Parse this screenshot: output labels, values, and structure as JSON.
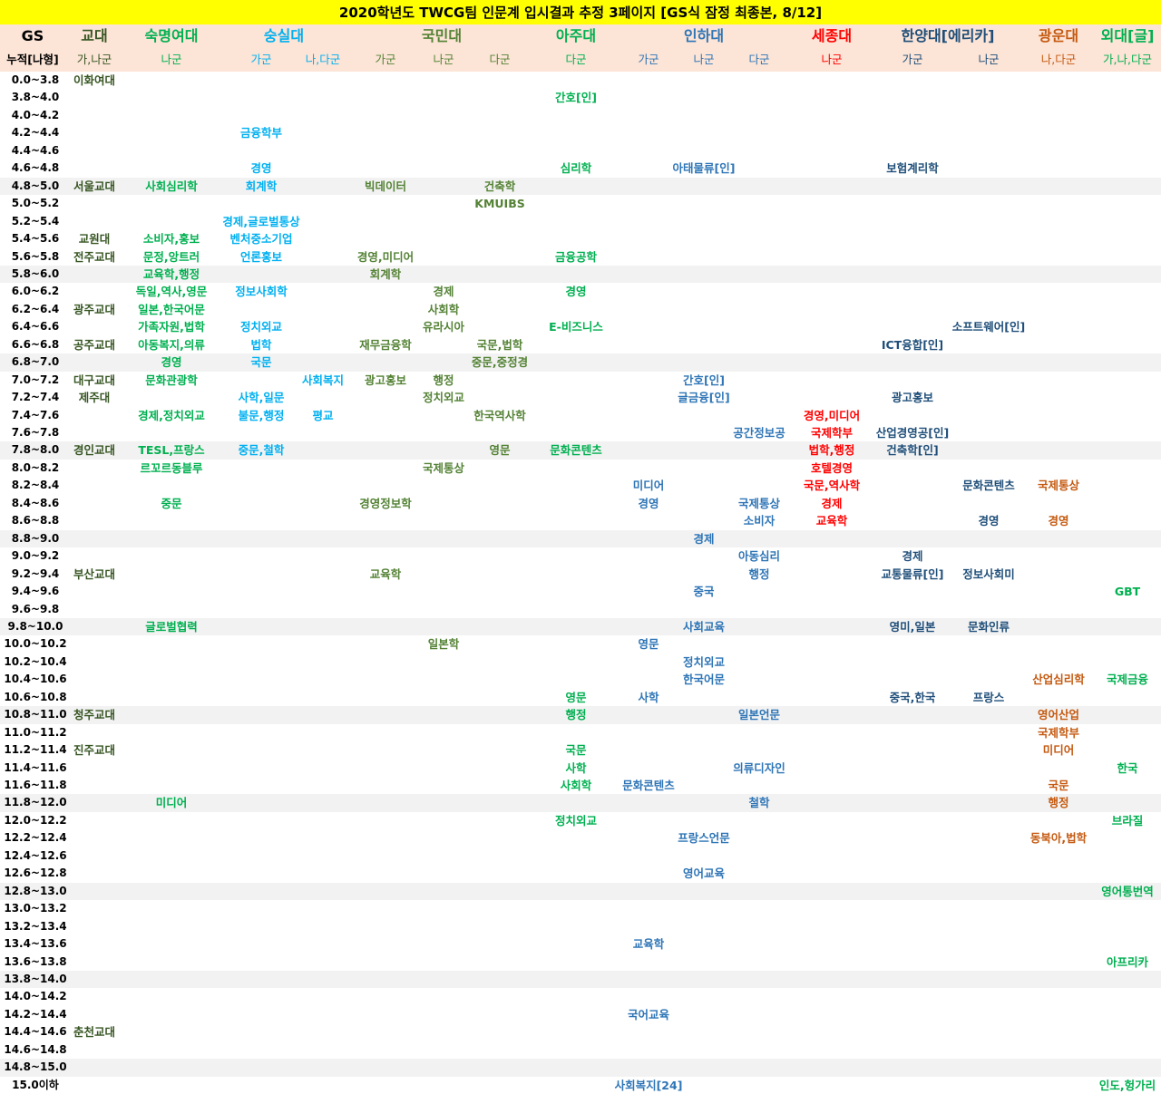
{
  "title": "2020학년도 TWCG팀 인문계 입시결과 추정 3페이지 [GS식 잠정 최종본, 8/12]",
  "colors": {
    "c1": "#375623",
    "c2": "#00b050",
    "c3": "#00b0f0",
    "c4": "#548235",
    "c5": "#00b050",
    "c6": "#2e75b6",
    "c7": "#ff0000",
    "c8": "#1f4e79",
    "c9": "#c55a11",
    "c10": "#00b050"
  },
  "header": {
    "gs_label": "GS",
    "gs_sub": "누적[나형]",
    "universities": [
      {
        "name": "교대",
        "col": "c1"
      },
      {
        "name": "숙명여대",
        "col": "c2"
      },
      {
        "name": "숭실대",
        "col": "c3"
      },
      {
        "name": "국민대",
        "col": "c4"
      },
      {
        "name": "아주대",
        "col": "c5"
      },
      {
        "name": "인하대",
        "col": "c6"
      },
      {
        "name": "세종대",
        "col": "c7"
      },
      {
        "name": "한양대[에리카]",
        "col": "c8"
      },
      {
        "name": "광운대",
        "col": "c9"
      },
      {
        "name": "외대[글]",
        "col": "c10"
      }
    ],
    "subcols": [
      {
        "id": "gyo",
        "label": "가,나군",
        "col": "c1"
      },
      {
        "id": "sm",
        "label": "나군",
        "col": "c2"
      },
      {
        "id": "ss_ga",
        "label": "가군",
        "col": "c3"
      },
      {
        "id": "ss_na",
        "label": "나,다군",
        "col": "c3"
      },
      {
        "id": "km_ga",
        "label": "가군",
        "col": "c4"
      },
      {
        "id": "km_na",
        "label": "나군",
        "col": "c4"
      },
      {
        "id": "km_da",
        "label": "다군",
        "col": "c4"
      },
      {
        "id": "aj",
        "label": "다군",
        "col": "c5"
      },
      {
        "id": "ih_ga",
        "label": "가군",
        "col": "c6"
      },
      {
        "id": "ih_na",
        "label": "나군",
        "col": "c6"
      },
      {
        "id": "ih_da",
        "label": "다군",
        "col": "c6"
      },
      {
        "id": "sj",
        "label": "나군",
        "col": "c7"
      },
      {
        "id": "hy_ga",
        "label": "가군",
        "col": "c8"
      },
      {
        "id": "hy_na",
        "label": "나군",
        "col": "c8"
      },
      {
        "id": "kw",
        "label": "나,다군",
        "col": "c9"
      },
      {
        "id": "hf",
        "label": "가,나,다군",
        "col": "c10"
      }
    ]
  },
  "rows": [
    {
      "gs": "0.0~3.8",
      "cells": {
        "gyo": "이화여대"
      }
    },
    {
      "gs": "3.8~4.0",
      "cells": {
        "aj": "간호[인]"
      }
    },
    {
      "gs": "4.0~4.2",
      "cells": {}
    },
    {
      "gs": "4.2~4.4",
      "cells": {
        "ss_ga": "금융학부"
      }
    },
    {
      "gs": "4.4~4.6",
      "cells": {}
    },
    {
      "gs": "4.6~4.8",
      "cells": {
        "ss_ga": "경영",
        "aj": "심리학",
        "ih_na": "아태물류[인]",
        "hy_ga": "보험계리학"
      }
    },
    {
      "gs": "4.8~5.0",
      "cells": {
        "gyo": "서울교대",
        "sm": "사회심리학",
        "ss_ga": "회계학",
        "km_ga": "빅데이터",
        "km_da": "건축학"
      }
    },
    {
      "gs": "5.0~5.2",
      "cells": {
        "km_da": "KMUIBS"
      }
    },
    {
      "gs": "5.2~5.4",
      "cells": {
        "ss_ga": "경제,글로벌통상"
      }
    },
    {
      "gs": "5.4~5.6",
      "cells": {
        "gyo": "교원대",
        "sm": "소비자,홍보",
        "ss_ga": "벤처중소기업"
      }
    },
    {
      "gs": "5.6~5.8",
      "cells": {
        "gyo": "전주교대",
        "sm": "문정,앙트러",
        "ss_ga": "언론홍보",
        "km_ga": "경영,미디어",
        "aj": "금융공학"
      }
    },
    {
      "gs": "5.8~6.0",
      "cells": {
        "sm": "교육학,행정",
        "km_ga": "회계학"
      }
    },
    {
      "gs": "6.0~6.2",
      "cells": {
        "sm": "독일,역사,영문",
        "ss_ga": "정보사회학",
        "km_na": "경제",
        "aj": "경영"
      }
    },
    {
      "gs": "6.2~6.4",
      "cells": {
        "gyo": "광주교대",
        "sm": "일본,한국어문",
        "km_na": "사회학"
      }
    },
    {
      "gs": "6.4~6.6",
      "cells": {
        "sm": "가족자원,법학",
        "ss_ga": "정치외교",
        "km_na": "유라시아",
        "aj": "E-비즈니스",
        "hy_na": "소프트웨어[인]"
      }
    },
    {
      "gs": "6.6~6.8",
      "cells": {
        "gyo": "공주교대",
        "sm": "아동복지,의류",
        "ss_ga": "법학",
        "km_ga": "재무금융학",
        "km_da": "국문,법학",
        "hy_ga": "ICT융합[인]"
      }
    },
    {
      "gs": "6.8~7.0",
      "cells": {
        "sm": "경영",
        "ss_ga": "국문",
        "km_da": "중문,중정경"
      }
    },
    {
      "gs": "7.0~7.2",
      "cells": {
        "gyo": "대구교대",
        "sm": "문화관광학",
        "ss_na": "사회복지",
        "km_ga": "광고홍보",
        "km_na": "행정",
        "ih_na": "간호[인]"
      }
    },
    {
      "gs": "7.2~7.4",
      "cells": {
        "gyo": "제주대",
        "ss_ga": "사학,일문",
        "km_na": "정치외교",
        "ih_na": "글금융[인]",
        "hy_ga": "광고홍보"
      }
    },
    {
      "gs": "7.4~7.6",
      "cells": {
        "sm": "경제,정치외교",
        "ss_ga": "불문,행정",
        "ss_na": "평교",
        "km_da": "한국역사학",
        "sj": "경영,미디어"
      }
    },
    {
      "gs": "7.6~7.8",
      "cells": {
        "ih_da": "공간정보공",
        "sj": "국제학부",
        "hy_ga": "산업경영공[인]"
      }
    },
    {
      "gs": "7.8~8.0",
      "cells": {
        "gyo": "경인교대",
        "sm": "TESL,프랑스",
        "ss_ga": "중문,철학",
        "km_da": "영문",
        "aj": "문화콘텐츠",
        "sj": "법학,행정",
        "hy_ga": "건축학[인]"
      }
    },
    {
      "gs": "8.0~8.2",
      "cells": {
        "sm": "르꼬르동블루",
        "km_na": "국제통상",
        "sj": "호텔경영"
      }
    },
    {
      "gs": "8.2~8.4",
      "cells": {
        "ih_ga": "미디어",
        "sj": "국문,역사학",
        "hy_na": "문화콘텐츠",
        "kw": "국제통상"
      }
    },
    {
      "gs": "8.4~8.6",
      "cells": {
        "sm": "중문",
        "km_ga": "경영정보학",
        "ih_ga": "경영",
        "ih_da": "국제통상",
        "sj": "경제"
      }
    },
    {
      "gs": "8.6~8.8",
      "cells": {
        "ih_da": "소비자",
        "sj": "교육학",
        "hy_na": "경영",
        "kw": "경영"
      }
    },
    {
      "gs": "8.8~9.0",
      "cells": {
        "ih_na": "경제"
      }
    },
    {
      "gs": "9.0~9.2",
      "cells": {
        "ih_da": "아동심리",
        "hy_ga": "경제"
      }
    },
    {
      "gs": "9.2~9.4",
      "cells": {
        "gyo": "부산교대",
        "km_ga": "교육학",
        "ih_da": "행정",
        "hy_ga": "교통물류[인]",
        "hy_na": "정보사회미"
      }
    },
    {
      "gs": "9.4~9.6",
      "cells": {
        "ih_na": "중국",
        "hf": "GBT"
      }
    },
    {
      "gs": "9.6~9.8",
      "cells": {}
    },
    {
      "gs": "9.8~10.0",
      "cells": {
        "sm": "글로벌협력",
        "ih_na": "사회교육",
        "hy_ga": "영미,일본",
        "hy_na": "문화인류"
      }
    },
    {
      "gs": "10.0~10.2",
      "cells": {
        "km_na": "일본학",
        "ih_ga": "영문"
      }
    },
    {
      "gs": "10.2~10.4",
      "cells": {
        "ih_na": "정치외교"
      }
    },
    {
      "gs": "10.4~10.6",
      "cells": {
        "ih_na": "한국어문",
        "kw": "산업심리학",
        "hf": "국제금융"
      }
    },
    {
      "gs": "10.6~10.8",
      "cells": {
        "aj": "영문",
        "ih_ga": "사학",
        "hy_ga": "중국,한국",
        "hy_na": "프랑스"
      }
    },
    {
      "gs": "10.8~11.0",
      "cells": {
        "gyo": "청주교대",
        "aj": "행정",
        "ih_da": "일본언문",
        "kw": "영어산업"
      }
    },
    {
      "gs": "11.0~11.2",
      "cells": {
        "kw": "국제학부"
      }
    },
    {
      "gs": "11.2~11.4",
      "cells": {
        "gyo": "진주교대",
        "aj": "국문",
        "kw": "미디어"
      }
    },
    {
      "gs": "11.4~11.6",
      "cells": {
        "aj": "사학",
        "ih_da": "의류디자인",
        "hf": "한국"
      }
    },
    {
      "gs": "11.6~11.8",
      "cells": {
        "aj": "사회학",
        "ih_ga": "문화콘텐츠",
        "kw": "국문"
      }
    },
    {
      "gs": "11.8~12.0",
      "cells": {
        "sm": "미디어",
        "ih_da": "철학",
        "kw": "행정"
      }
    },
    {
      "gs": "12.0~12.2",
      "cells": {
        "aj": "정치외교",
        "hf": "브라질"
      }
    },
    {
      "gs": "12.2~12.4",
      "cells": {
        "ih_na": "프랑스언문",
        "kw": "동북아,법학"
      }
    },
    {
      "gs": "12.4~12.6",
      "cells": {}
    },
    {
      "gs": "12.6~12.8",
      "cells": {
        "ih_na": "영어교육"
      }
    },
    {
      "gs": "12.8~13.0",
      "cells": {
        "hf": "영어통번역"
      }
    },
    {
      "gs": "13.0~13.2",
      "cells": {}
    },
    {
      "gs": "13.2~13.4",
      "cells": {}
    },
    {
      "gs": "13.4~13.6",
      "cells": {
        "ih_ga": "교육학"
      }
    },
    {
      "gs": "13.6~13.8",
      "cells": {
        "hf": "아프리카"
      }
    },
    {
      "gs": "13.8~14.0",
      "cells": {}
    },
    {
      "gs": "14.0~14.2",
      "cells": {}
    },
    {
      "gs": "14.2~14.4",
      "cells": {
        "ih_ga": "국어교육"
      }
    },
    {
      "gs": "14.4~14.6",
      "cells": {
        "gyo": "춘천교대"
      }
    },
    {
      "gs": "14.6~14.8",
      "cells": {}
    },
    {
      "gs": "14.8~15.0",
      "cells": {}
    },
    {
      "gs": "15.0이하",
      "cells": {
        "ih_ga": "사회복지[24]",
        "hf": "인도,헝가리"
      }
    }
  ]
}
